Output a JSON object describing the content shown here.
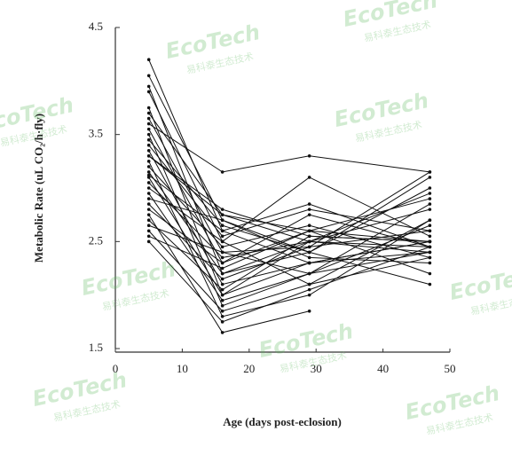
{
  "chart_data": {
    "type": "line",
    "ylabel": "Metabolic Rate (uL CO₂/h·fly)",
    "xlabel": "Age (days post-eclosion)",
    "x": [
      5,
      16,
      29,
      47
    ],
    "xlim": [
      0,
      50
    ],
    "xticks": [
      0,
      10,
      20,
      30,
      40,
      50
    ],
    "ylim": [
      1.5,
      4.5
    ],
    "yticks": [
      1.5,
      2.5,
      3.5,
      4.5
    ],
    "color": "#111111",
    "series": [
      {
        "values": [
          4.2,
          2.6,
          2.3,
          2.5
        ]
      },
      {
        "values": [
          4.05,
          2.7,
          2.4,
          3.1
        ]
      },
      {
        "values": [
          3.95,
          2.2,
          2.5,
          2.4
        ]
      },
      {
        "values": [
          3.9,
          2.5,
          2.1,
          2.7
        ]
      },
      {
        "values": [
          3.75,
          2.0,
          2.5,
          2.45
        ]
      },
      {
        "values": [
          3.7,
          2.75,
          2.6,
          2.5
        ]
      },
      {
        "values": [
          3.65,
          2.4,
          2.45,
          3.15
        ]
      },
      {
        "values": [
          3.6,
          3.15,
          3.3,
          3.15
        ]
      },
      {
        "values": [
          3.55,
          2.3,
          2.6,
          2.2
        ]
      },
      {
        "values": [
          3.5,
          1.9,
          2.2,
          2.85
        ]
      },
      {
        "values": [
          3.45,
          2.65,
          2.4,
          2.1
        ]
      },
      {
        "values": [
          3.4,
          2.55,
          2.8,
          2.6
        ]
      },
      {
        "values": [
          3.35,
          2.1,
          2.3,
          2.4
        ]
      },
      {
        "values": [
          3.3,
          2.8,
          2.55,
          2.5
        ]
      },
      {
        "values": [
          3.25,
          1.8,
          2.0,
          2.7
        ]
      },
      {
        "values": [
          3.2,
          2.45,
          2.65,
          2.35
        ]
      },
      {
        "values": [
          3.15,
          2.2,
          2.4,
          3.0
        ]
      },
      {
        "values": [
          3.12,
          2.6,
          2.85,
          2.45
        ]
      },
      {
        "values": [
          3.1,
          2.0,
          2.3,
          2.5
        ]
      },
      {
        "values": [
          3.05,
          2.35,
          2.5,
          2.8
        ]
      },
      {
        "values": [
          3.0,
          2.5,
          3.1,
          2.55
        ]
      },
      {
        "values": [
          2.95,
          1.95,
          2.2,
          2.4
        ]
      },
      {
        "values": [
          2.9,
          2.7,
          2.35,
          2.3
        ]
      },
      {
        "values": [
          2.85,
          2.15,
          2.45,
          2.6
        ]
      },
      {
        "values": [
          2.8,
          2.3,
          2.75,
          2.45
        ]
      },
      {
        "values": [
          2.75,
          1.65,
          1.85,
          null
        ]
      },
      {
        "values": [
          2.7,
          2.05,
          2.55,
          2.5
        ]
      },
      {
        "values": [
          2.65,
          2.4,
          2.2,
          2.65
        ]
      },
      {
        "values": [
          2.6,
          1.85,
          2.1,
          2.35
        ]
      },
      {
        "values": [
          2.55,
          2.25,
          2.6,
          2.9
        ]
      },
      {
        "values": [
          2.5,
          1.75,
          2.05,
          2.45
        ]
      },
      {
        "values": [
          3.3,
          2.75,
          2.5,
          2.95
        ]
      }
    ]
  },
  "watermarks": [
    "EcoTech",
    "易科泰生态技术"
  ]
}
